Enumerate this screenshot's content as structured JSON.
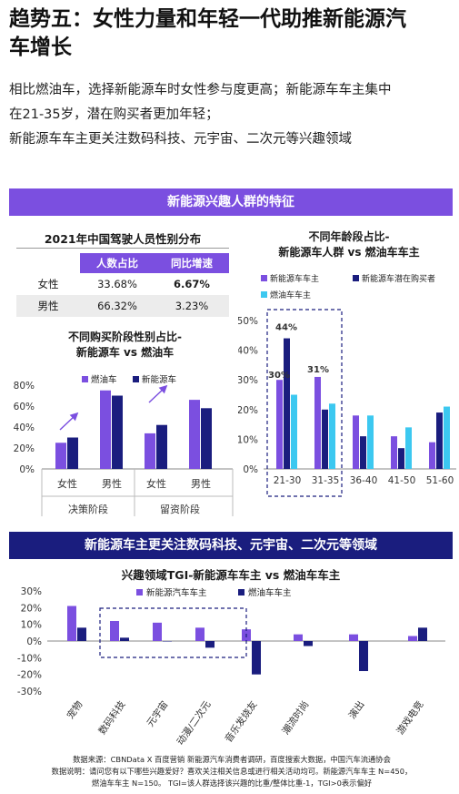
{
  "page": {
    "title_line1": "趋势五：女性力量和年轻一代助推新能源汽",
    "title_line2": "车增长",
    "intro_line1": "相比燃油车，选择新能源车时女性参与度更高；新能源车车主集中",
    "intro_line2": "在21-35岁，潜在购买者更加年轻；",
    "intro_line3": "新能源车车主更关注数码科技、元宇宙、二次元等兴趣领域",
    "banner1": "新能源兴趣人群的特征",
    "banner2": "新能源车主更关注数码科技、元宇宙、二次元等领域",
    "source_line1": "数据来源：CBNData X 百度营销 新能源汽车消费者调研，百度搜索大数据，中国汽车流通协会",
    "source_line2": "数据说明：请问您有以下哪些兴趣爱好？喜欢关注相关信息或进行相关活动均可。新能源汽车车主 N=450，",
    "source_line3": "燃油车车主 N=150。 TGI=该人群选择该兴趣的比重/整体比重-1，TGI>0表示偏好"
  },
  "colors": {
    "purple": "#7b4fe0",
    "navy": "#1a1d7e",
    "cyan": "#3cc8f0",
    "table_alt": "#ececec"
  },
  "table": {
    "title": "2021年中国驾驶人员性别分布",
    "headers": [
      "",
      "人数占比",
      "同比增速"
    ],
    "rows": [
      {
        "label": "女性",
        "share": "33.68%",
        "growth": "6.67%",
        "bold_growth": true
      },
      {
        "label": "男性",
        "share": "66.32%",
        "growth": "3.23%",
        "bold_growth": false
      }
    ]
  },
  "chart_data": [
    {
      "type": "bar",
      "title_line1": "不同购买阶段性别占比-",
      "title_line2": "新能源车 vs 燃油车",
      "groups": [
        "决策阶段",
        "留资阶段"
      ],
      "categories": [
        "女性",
        "男性",
        "女性",
        "男性"
      ],
      "series": [
        {
          "name": "燃油车",
          "color": "#7b4fe0",
          "values": [
            25,
            75,
            34,
            66
          ]
        },
        {
          "name": "新能源车",
          "color": "#1a1d7e",
          "values": [
            30,
            70,
            42,
            58
          ]
        }
      ],
      "yticks": [
        "0%",
        "20%",
        "40%",
        "60%",
        "80%"
      ],
      "ylim": [
        0,
        80
      ],
      "legend": "top",
      "annotation": "arrows pointing up over 女性 bars"
    },
    {
      "type": "bar",
      "title_line1": "不同年龄段占比-",
      "title_line2": "新能源车人群 vs 燃油车车主",
      "categories": [
        "21-30",
        "31-35",
        "36-40",
        "41-50",
        "51-60"
      ],
      "series": [
        {
          "name": "新能源车车主",
          "color": "#7b4fe0",
          "values": [
            30,
            31,
            18,
            11,
            9
          ]
        },
        {
          "name": "新能源车潜在购买者",
          "color": "#1a1d7e",
          "values": [
            44,
            20,
            11,
            7,
            19
          ]
        },
        {
          "name": "燃油车车主",
          "color": "#3cc8f0",
          "values": [
            25,
            22,
            18,
            14,
            21
          ]
        }
      ],
      "labels": [
        "30%",
        "44%",
        "31%"
      ],
      "yticks": [
        "0%",
        "10%",
        "20%",
        "30%",
        "40%",
        "50%"
      ],
      "ylim": [
        0,
        50
      ],
      "legend": "top",
      "highlight": "dashed box around 21-30 and 31-35"
    },
    {
      "type": "bar",
      "title": "兴趣领域TGI-新能源车车主 vs 燃油车车主",
      "categories": [
        "宠物",
        "数码科技",
        "元宇宙",
        "动漫/二次元",
        "音乐发烧友",
        "潮流时尚",
        "演出",
        "游戏电竞"
      ],
      "series": [
        {
          "name": "新能源汽车车主",
          "color": "#7b4fe0",
          "values": [
            21,
            12,
            11,
            8,
            7,
            4,
            4,
            3
          ]
        },
        {
          "name": "燃油车车主",
          "color": "#1a1d7e",
          "values": [
            8,
            2,
            0,
            -4,
            -20,
            -3,
            -18,
            8
          ]
        }
      ],
      "yticks": [
        "30%",
        "20%",
        "10%",
        "0%",
        "-10%",
        "-20%",
        "-30%"
      ],
      "ylim": [
        -30,
        30
      ],
      "legend": "top",
      "highlight": "dashed box around 数码科技, 元宇宙, 动漫/二次元"
    }
  ]
}
